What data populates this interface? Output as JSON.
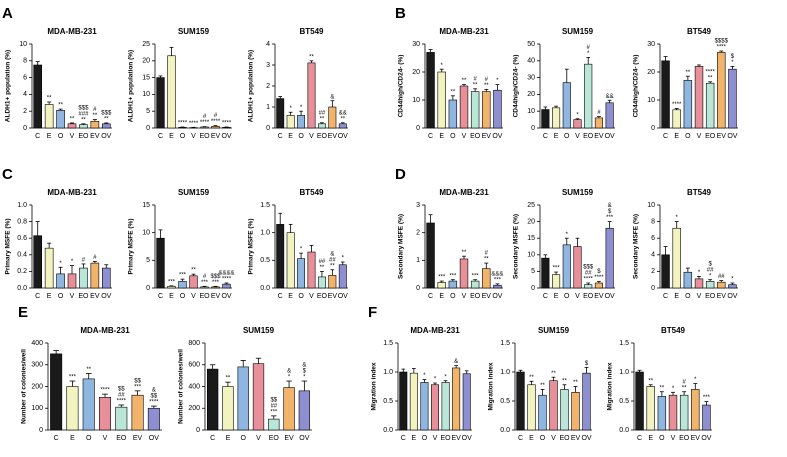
{
  "chart_data": [
    {
      "type": "bar",
      "panel": "A",
      "title": "MDA-MB-231",
      "ylabel": "ALDH1+ population (%)",
      "categories": [
        "C",
        "E",
        "O",
        "V",
        "EO",
        "EV",
        "OV"
      ],
      "values": [
        7.5,
        2.8,
        2.1,
        0.5,
        0.4,
        0.8,
        0.5
      ],
      "errors": [
        0.4,
        0.3,
        0.15,
        0.1,
        0.1,
        0.2,
        0.1
      ],
      "annotations": [
        null,
        [
          "**"
        ],
        [
          "**"
        ],
        [
          "**"
        ],
        [
          "$$$",
          "###",
          "**"
        ],
        [
          "#",
          "**"
        ],
        [
          "$$$",
          "**"
        ]
      ],
      "bar_colors": [
        "#1a1a1a",
        "#f3f3bf",
        "#8fb6e0",
        "#e8909a",
        "#b9e6d6",
        "#f2b36b",
        "#8d8fd0"
      ],
      "ylim": [
        0,
        10
      ],
      "yticks": [
        0,
        2,
        4,
        6,
        8,
        10
      ]
    },
    {
      "type": "bar",
      "title": "SUM159",
      "ylabel": "ALDH1+ population (%)",
      "categories": [
        "C",
        "E",
        "O",
        "V",
        "EO",
        "EV",
        "OV"
      ],
      "values": [
        15,
        21.5,
        0.2,
        0.1,
        0.3,
        0.5,
        0.2
      ],
      "errors": [
        0.5,
        2.5,
        0.1,
        0.1,
        0.1,
        0.2,
        0.1
      ],
      "annotations": [
        null,
        null,
        [
          "****"
        ],
        [
          "****"
        ],
        [
          "#",
          "****"
        ],
        [
          "#",
          "****"
        ],
        [
          "****"
        ]
      ],
      "bar_colors": [
        "#1a1a1a",
        "#f3f3bf",
        "#8fb6e0",
        "#e8909a",
        "#b9e6d6",
        "#f2b36b",
        "#8d8fd0"
      ],
      "ylim": [
        0,
        25
      ],
      "yticks": [
        0,
        5,
        10,
        15,
        20,
        25
      ]
    },
    {
      "type": "bar",
      "title": "BT549",
      "ylabel": "ALDH1+ population (%)",
      "categories": [
        "C",
        "E",
        "O",
        "V",
        "EO",
        "EV",
        "OV"
      ],
      "values": [
        1.4,
        0.6,
        0.6,
        3.1,
        0.2,
        1.0,
        0.2
      ],
      "errors": [
        0.1,
        0.15,
        0.2,
        0.1,
        0.05,
        0.3,
        0.05
      ],
      "annotations": [
        null,
        [
          "*"
        ],
        [
          "*"
        ],
        [
          "**"
        ],
        [
          "##",
          "**"
        ],
        [
          "&"
        ],
        [
          "&&",
          "**"
        ]
      ],
      "bar_colors": [
        "#1a1a1a",
        "#f3f3bf",
        "#8fb6e0",
        "#e8909a",
        "#b9e6d6",
        "#f2b36b",
        "#8d8fd0"
      ],
      "ylim": [
        0,
        4
      ],
      "yticks": [
        0,
        1,
        2,
        3,
        4
      ]
    },
    {
      "type": "bar",
      "panel": "B",
      "title": "MDA-MB-231",
      "ylabel": "CD44high/CD24- (%)",
      "categories": [
        "C",
        "E",
        "O",
        "V",
        "EO",
        "EV",
        "OV"
      ],
      "values": [
        27,
        20,
        10,
        15,
        13,
        13,
        13.5
      ],
      "errors": [
        1,
        1,
        1.5,
        0.5,
        1,
        0.8,
        2
      ],
      "annotations": [
        null,
        [
          "*"
        ],
        [
          "**"
        ],
        [
          "**"
        ],
        [
          "#",
          "**"
        ],
        [
          "#",
          "**"
        ],
        [
          "*"
        ]
      ],
      "bar_colors": [
        "#1a1a1a",
        "#f3f3bf",
        "#8fb6e0",
        "#e8909a",
        "#b9e6d6",
        "#f2b36b",
        "#8d8fd0"
      ],
      "ylim": [
        0,
        30
      ],
      "yticks": [
        0,
        10,
        20,
        30
      ]
    },
    {
      "type": "bar",
      "title": "SUM159",
      "ylabel": "CD44high/CD24- (%)",
      "categories": [
        "C",
        "E",
        "O",
        "V",
        "EO",
        "EV",
        "OV"
      ],
      "values": [
        11,
        12,
        27,
        5,
        38,
        6,
        15
      ],
      "errors": [
        1.5,
        1,
        8,
        0.5,
        4,
        0.8,
        1.5
      ],
      "annotations": [
        null,
        null,
        null,
        [
          "*"
        ],
        [
          "#",
          "*"
        ],
        [
          "#"
        ],
        [
          "&&"
        ]
      ],
      "bar_colors": [
        "#1a1a1a",
        "#f3f3bf",
        "#8fb6e0",
        "#e8909a",
        "#b9e6d6",
        "#f2b36b",
        "#8d8fd0"
      ],
      "ylim": [
        0,
        50
      ],
      "yticks": [
        0,
        10,
        20,
        30,
        40,
        50
      ]
    },
    {
      "type": "bar",
      "title": "BT549",
      "ylabel": "CD44high/CD24- (%)",
      "categories": [
        "C",
        "E",
        "O",
        "V",
        "EO",
        "EV",
        "OV"
      ],
      "values": [
        24,
        6.5,
        17,
        22,
        16,
        27,
        21
      ],
      "errors": [
        1.5,
        0.5,
        1.5,
        0.5,
        0.5,
        0.5,
        1
      ],
      "annotations": [
        null,
        [
          "****"
        ],
        [
          "**"
        ],
        null,
        [
          "****",
          "**"
        ],
        [
          "$$$$",
          "****"
        ],
        [
          "$",
          "*"
        ]
      ],
      "bar_colors": [
        "#1a1a1a",
        "#f3f3bf",
        "#8fb6e0",
        "#e8909a",
        "#b9e6d6",
        "#f2b36b",
        "#8d8fd0"
      ],
      "ylim": [
        0,
        30
      ],
      "yticks": [
        0,
        10,
        20,
        30
      ]
    },
    {
      "type": "bar",
      "panel": "C",
      "title": "MDA-MB-231",
      "ylabel": "Primary MSFE (%)",
      "categories": [
        "C",
        "E",
        "O",
        "V",
        "EO",
        "EV",
        "OV"
      ],
      "values": [
        0.63,
        0.48,
        0.17,
        0.17,
        0.24,
        0.3,
        0.24
      ],
      "errors": [
        0.17,
        0.06,
        0.08,
        0.1,
        0.05,
        0.02,
        0.04
      ],
      "annotations": [
        null,
        null,
        [
          "*"
        ],
        [
          "*"
        ],
        [
          "#"
        ],
        [
          "#"
        ],
        null
      ],
      "bar_colors": [
        "#1a1a1a",
        "#f3f3bf",
        "#8fb6e0",
        "#e8909a",
        "#b9e6d6",
        "#f2b36b",
        "#8d8fd0"
      ],
      "ylim": [
        0,
        1
      ],
      "yticks": [
        {
          "value": 0,
          "label": "0.0"
        },
        0.2,
        0.4,
        0.6,
        0.8,
        {
          "value": 1,
          "label": "1.0"
        }
      ]
    },
    {
      "type": "bar",
      "title": "SUM159",
      "ylabel": "Primary MSFE (%)",
      "categories": [
        "C",
        "E",
        "O",
        "V",
        "EO",
        "EV",
        "OV"
      ],
      "values": [
        9,
        0.3,
        1.2,
        2.2,
        0.2,
        0.2,
        0.7
      ],
      "errors": [
        1.5,
        0.1,
        0.4,
        0.3,
        0.1,
        0.1,
        0.2
      ],
      "annotations": [
        null,
        [
          "***"
        ],
        [
          "***"
        ],
        [
          "**"
        ],
        [
          "#",
          "***"
        ],
        [
          "$$$",
          "***"
        ],
        [
          "&&&&",
          "****"
        ]
      ],
      "bar_colors": [
        "#1a1a1a",
        "#f3f3bf",
        "#8fb6e0",
        "#e8909a",
        "#b9e6d6",
        "#f2b36b",
        "#8d8fd0"
      ],
      "ylim": [
        0,
        15
      ],
      "yticks": [
        0,
        5,
        10,
        15
      ]
    },
    {
      "type": "bar",
      "title": "BT549",
      "ylabel": "Primary MSFE (%)",
      "categories": [
        "C",
        "E",
        "O",
        "V",
        "EO",
        "EV",
        "OV"
      ],
      "values": [
        1.15,
        1.0,
        0.53,
        0.65,
        0.2,
        0.23,
        0.42
      ],
      "errors": [
        0.2,
        0.15,
        0.1,
        0.12,
        0.1,
        0.1,
        0.05
      ],
      "annotations": [
        null,
        null,
        [
          "*"
        ],
        null,
        [
          "##",
          "**"
        ],
        [
          "&",
          "##",
          "**"
        ],
        [
          "*"
        ]
      ],
      "bar_colors": [
        "#1a1a1a",
        "#f3f3bf",
        "#8fb6e0",
        "#e8909a",
        "#b9e6d6",
        "#f2b36b",
        "#8d8fd0"
      ],
      "ylim": [
        0,
        1.5
      ],
      "yticks": [
        {
          "value": 0,
          "label": "0.0"
        },
        0.5,
        {
          "value": 1,
          "label": "1.0"
        },
        1.5
      ]
    },
    {
      "type": "bar",
      "panel": "D",
      "title": "MDA-MB-231",
      "ylabel": "Secondary MSFE (%)",
      "categories": [
        "C",
        "E",
        "O",
        "V",
        "EO",
        "EV",
        "OV"
      ],
      "values": [
        2.35,
        0.2,
        0.25,
        1.05,
        0.25,
        0.7,
        0.1
      ],
      "errors": [
        0.3,
        0.05,
        0.05,
        0.1,
        0.05,
        0.2,
        0.05
      ],
      "annotations": [
        null,
        [
          "***"
        ],
        [
          "***"
        ],
        [
          "**"
        ],
        [
          "***"
        ],
        [
          "#",
          "**"
        ],
        [
          "&&&",
          "***"
        ]
      ],
      "bar_colors": [
        "#1a1a1a",
        "#f3f3bf",
        "#8fb6e0",
        "#e8909a",
        "#b9e6d6",
        "#f2b36b",
        "#8d8fd0"
      ],
      "ylim": [
        0,
        3
      ],
      "yticks": [
        0,
        1,
        2,
        3
      ]
    },
    {
      "type": "bar",
      "title": "SUM159",
      "ylabel": "Secondary MSFE (%)",
      "categories": [
        "C",
        "E",
        "O",
        "V",
        "EO",
        "EV",
        "OV"
      ],
      "values": [
        9,
        4,
        13,
        12.5,
        1,
        1.5,
        18
      ],
      "errors": [
        1,
        0.8,
        2,
        2.5,
        0.5,
        0.5,
        2
      ],
      "annotations": [
        null,
        [
          "***"
        ],
        [
          "*"
        ],
        null,
        [
          "$$$",
          "##",
          "****"
        ],
        [
          "$",
          "****"
        ],
        [
          "&",
          "$",
          "***"
        ]
      ],
      "bar_colors": [
        "#1a1a1a",
        "#f3f3bf",
        "#8fb6e0",
        "#e8909a",
        "#b9e6d6",
        "#f2b36b",
        "#8d8fd0"
      ],
      "ylim": [
        0,
        25
      ],
      "yticks": [
        0,
        5,
        10,
        15,
        20,
        25
      ]
    },
    {
      "type": "bar",
      "title": "BT549",
      "ylabel": "Secondary MSFE (%)",
      "categories": [
        "C",
        "E",
        "O",
        "V",
        "EO",
        "EV",
        "OV"
      ],
      "values": [
        4,
        7.2,
        1.9,
        1.1,
        0.8,
        0.7,
        0.4
      ],
      "errors": [
        1,
        0.8,
        0.5,
        0.3,
        0.2,
        0.2,
        0.2
      ],
      "annotations": [
        null,
        [
          "*"
        ],
        null,
        [
          "*"
        ],
        [
          "$",
          "##",
          "*"
        ],
        [
          "##"
        ],
        [
          "*"
        ]
      ],
      "bar_colors": [
        "#1a1a1a",
        "#f3f3bf",
        "#8fb6e0",
        "#e8909a",
        "#b9e6d6",
        "#f2b36b",
        "#8d8fd0"
      ],
      "ylim": [
        0,
        10
      ],
      "yticks": [
        0,
        2,
        4,
        6,
        8,
        10
      ]
    },
    {
      "type": "bar",
      "panel": "E",
      "title": "MDA-MB-231",
      "ylabel": "Number of colonies/well",
      "categories": [
        "C",
        "E",
        "O",
        "V",
        "EO",
        "EV",
        "OV"
      ],
      "values": [
        350,
        200,
        235,
        150,
        105,
        160,
        100
      ],
      "errors": [
        15,
        25,
        25,
        15,
        10,
        20,
        10
      ],
      "annotations": [
        null,
        [
          "***"
        ],
        [
          "**"
        ],
        [
          "****"
        ],
        [
          "$$",
          "##",
          "****"
        ],
        [
          "$$",
          "***"
        ],
        [
          "&",
          "$$",
          "****"
        ]
      ],
      "bar_colors": [
        "#1a1a1a",
        "#f3f3bf",
        "#8fb6e0",
        "#e8909a",
        "#b9e6d6",
        "#f2b36b",
        "#8d8fd0"
      ],
      "ylim": [
        0,
        400
      ],
      "yticks": [
        0,
        100,
        200,
        300,
        400
      ]
    },
    {
      "type": "bar",
      "title": "SUM159",
      "ylabel": "Number of colonies/well",
      "categories": [
        "C",
        "E",
        "O",
        "V",
        "EO",
        "EV",
        "OV"
      ],
      "values": [
        560,
        400,
        580,
        610,
        100,
        390,
        360
      ],
      "errors": [
        40,
        40,
        60,
        50,
        30,
        60,
        90
      ],
      "annotations": [
        null,
        [
          "**"
        ],
        null,
        null,
        [
          "$$",
          "##",
          "***"
        ],
        [
          "&",
          "*"
        ],
        [
          "&",
          "$",
          "*"
        ]
      ],
      "bar_colors": [
        "#1a1a1a",
        "#f3f3bf",
        "#8fb6e0",
        "#e8909a",
        "#b9e6d6",
        "#f2b36b",
        "#8d8fd0"
      ],
      "ylim": [
        0,
        800
      ],
      "yticks": [
        0,
        200,
        400,
        600,
        800
      ]
    },
    {
      "type": "bar",
      "panel": "F",
      "title": "MDA-MB-231",
      "ylabel": "Migration index",
      "categories": [
        "C",
        "E",
        "O",
        "V",
        "EO",
        "EV",
        "OV"
      ],
      "values": [
        1.0,
        0.98,
        0.82,
        0.78,
        0.82,
        1.07,
        0.97
      ],
      "errors": [
        0.05,
        0.08,
        0.05,
        0.03,
        0.03,
        0.04,
        0.05
      ],
      "annotations": [
        null,
        null,
        [
          "*"
        ],
        [
          "*"
        ],
        [
          "*"
        ],
        [
          "&"
        ],
        null
      ],
      "bar_colors": [
        "#1a1a1a",
        "#f3f3bf",
        "#8fb6e0",
        "#e8909a",
        "#b9e6d6",
        "#f2b36b",
        "#8d8fd0"
      ],
      "ylim": [
        0,
        1.5
      ],
      "yticks": [
        {
          "value": 0,
          "label": "0.0"
        },
        0.5,
        {
          "value": 1,
          "label": "1.0"
        },
        1.5
      ]
    },
    {
      "type": "bar",
      "title": "SUM159",
      "ylabel": "Migration index",
      "categories": [
        "C",
        "E",
        "O",
        "V",
        "EO",
        "EV",
        "OV"
      ],
      "values": [
        1.0,
        0.78,
        0.6,
        0.85,
        0.7,
        0.65,
        0.98
      ],
      "errors": [
        0.03,
        0.06,
        0.1,
        0.06,
        0.08,
        0.1,
        0.1
      ],
      "annotations": [
        null,
        [
          "**"
        ],
        [
          "**"
        ],
        [
          "**"
        ],
        [
          "**"
        ],
        [
          "**"
        ],
        [
          "$"
        ]
      ],
      "bar_colors": [
        "#1a1a1a",
        "#f3f3bf",
        "#8fb6e0",
        "#e8909a",
        "#b9e6d6",
        "#f2b36b",
        "#8d8fd0"
      ],
      "ylim": [
        0,
        1.5
      ],
      "yticks": [
        {
          "value": 0,
          "label": "0.0"
        },
        0.5,
        {
          "value": 1,
          "label": "1.0"
        },
        1.5
      ]
    },
    {
      "type": "bar",
      "title": "BT549",
      "ylabel": "Migration index",
      "categories": [
        "C",
        "E",
        "O",
        "V",
        "EO",
        "EV",
        "OV"
      ],
      "values": [
        1.0,
        0.75,
        0.58,
        0.6,
        0.6,
        0.7,
        0.43
      ],
      "errors": [
        0.03,
        0.03,
        0.08,
        0.05,
        0.06,
        0.1,
        0.06
      ],
      "annotations": [
        null,
        [
          "**"
        ],
        [
          "**"
        ],
        [
          "*"
        ],
        [
          "#",
          "**"
        ],
        [
          "*"
        ],
        [
          "***"
        ]
      ],
      "bar_colors": [
        "#1a1a1a",
        "#f3f3bf",
        "#8fb6e0",
        "#e8909a",
        "#b9e6d6",
        "#f2b36b",
        "#8d8fd0"
      ],
      "ylim": [
        0,
        1.5
      ],
      "yticks": [
        {
          "value": 0,
          "label": "0.0"
        },
        0.5,
        {
          "value": 1,
          "label": "1.0"
        },
        1.5
      ]
    }
  ]
}
